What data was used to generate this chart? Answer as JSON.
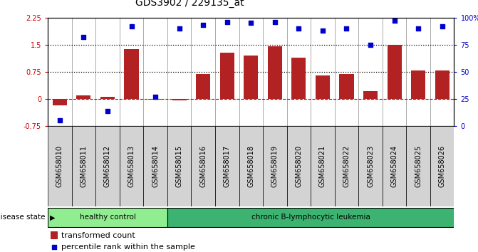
{
  "title": "GDS3902 / 229135_at",
  "categories": [
    "GSM658010",
    "GSM658011",
    "GSM658012",
    "GSM658013",
    "GSM658014",
    "GSM658015",
    "GSM658016",
    "GSM658017",
    "GSM658018",
    "GSM658019",
    "GSM658020",
    "GSM658021",
    "GSM658022",
    "GSM658023",
    "GSM658024",
    "GSM658025",
    "GSM658026"
  ],
  "bar_values": [
    -0.18,
    0.1,
    0.05,
    1.38,
    -0.03,
    -0.04,
    0.68,
    1.28,
    1.2,
    1.45,
    1.15,
    0.65,
    0.68,
    0.22,
    1.49,
    0.78,
    0.78
  ],
  "dot_values": [
    5,
    82,
    14,
    92,
    27,
    90,
    93,
    96,
    95,
    96,
    90,
    88,
    90,
    75,
    97,
    90,
    92
  ],
  "bar_color": "#b22222",
  "dot_color": "#0000cd",
  "ylim_left": [
    -0.75,
    2.25
  ],
  "ylim_right": [
    0,
    100
  ],
  "yticks_left": [
    -0.75,
    0.0,
    0.75,
    1.5,
    2.25
  ],
  "ytick_labels_left": [
    "-0.75",
    "0",
    "0.75",
    "1.5",
    "2.25"
  ],
  "yticks_right": [
    0,
    25,
    50,
    75,
    100
  ],
  "ytick_labels_right": [
    "0",
    "25",
    "50",
    "75",
    "100%"
  ],
  "hlines": [
    0.75,
    1.5
  ],
  "hline_zero_color": "#cc0000",
  "hline_dotted_color": "#000000",
  "healthy_label": "healthy control",
  "disease_label": "chronic B-lymphocytic leukemia",
  "healthy_count": 5,
  "disease_count": 12,
  "group_color_healthy": "#90ee90",
  "group_color_disease": "#3cb371",
  "disease_state_label": "disease state",
  "legend_bar_label": "transformed count",
  "legend_dot_label": "percentile rank within the sample",
  "background_color": "#ffffff",
  "title_fontsize": 10,
  "tick_fontsize": 7,
  "axis_color_left": "#cc0000",
  "axis_color_right": "#0000cd",
  "xtick_box_color": "#d3d3d3",
  "separator_color": "#888888"
}
